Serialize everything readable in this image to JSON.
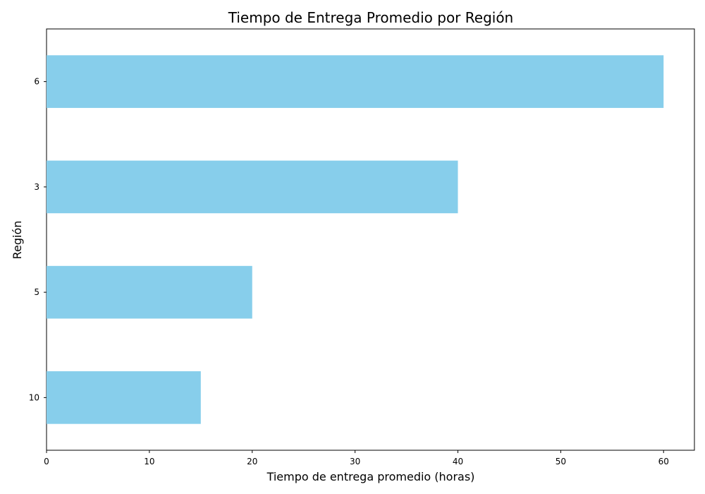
{
  "chart_data": {
    "type": "bar",
    "orientation": "horizontal",
    "title": "Tiempo de Entrega Promedio por Región",
    "xlabel": "Tiempo de entrega promedio (horas)",
    "ylabel": "Región",
    "categories": [
      "10",
      "5",
      "3",
      "6"
    ],
    "values": [
      15,
      20,
      40,
      60
    ],
    "xlim": [
      0,
      63
    ],
    "xticks": [
      0,
      10,
      20,
      30,
      40,
      50,
      60
    ],
    "grid": false,
    "legend": false,
    "colors": {
      "bar": "#87CEEB",
      "axis": "#000000",
      "background": "#FFFFFF"
    }
  }
}
